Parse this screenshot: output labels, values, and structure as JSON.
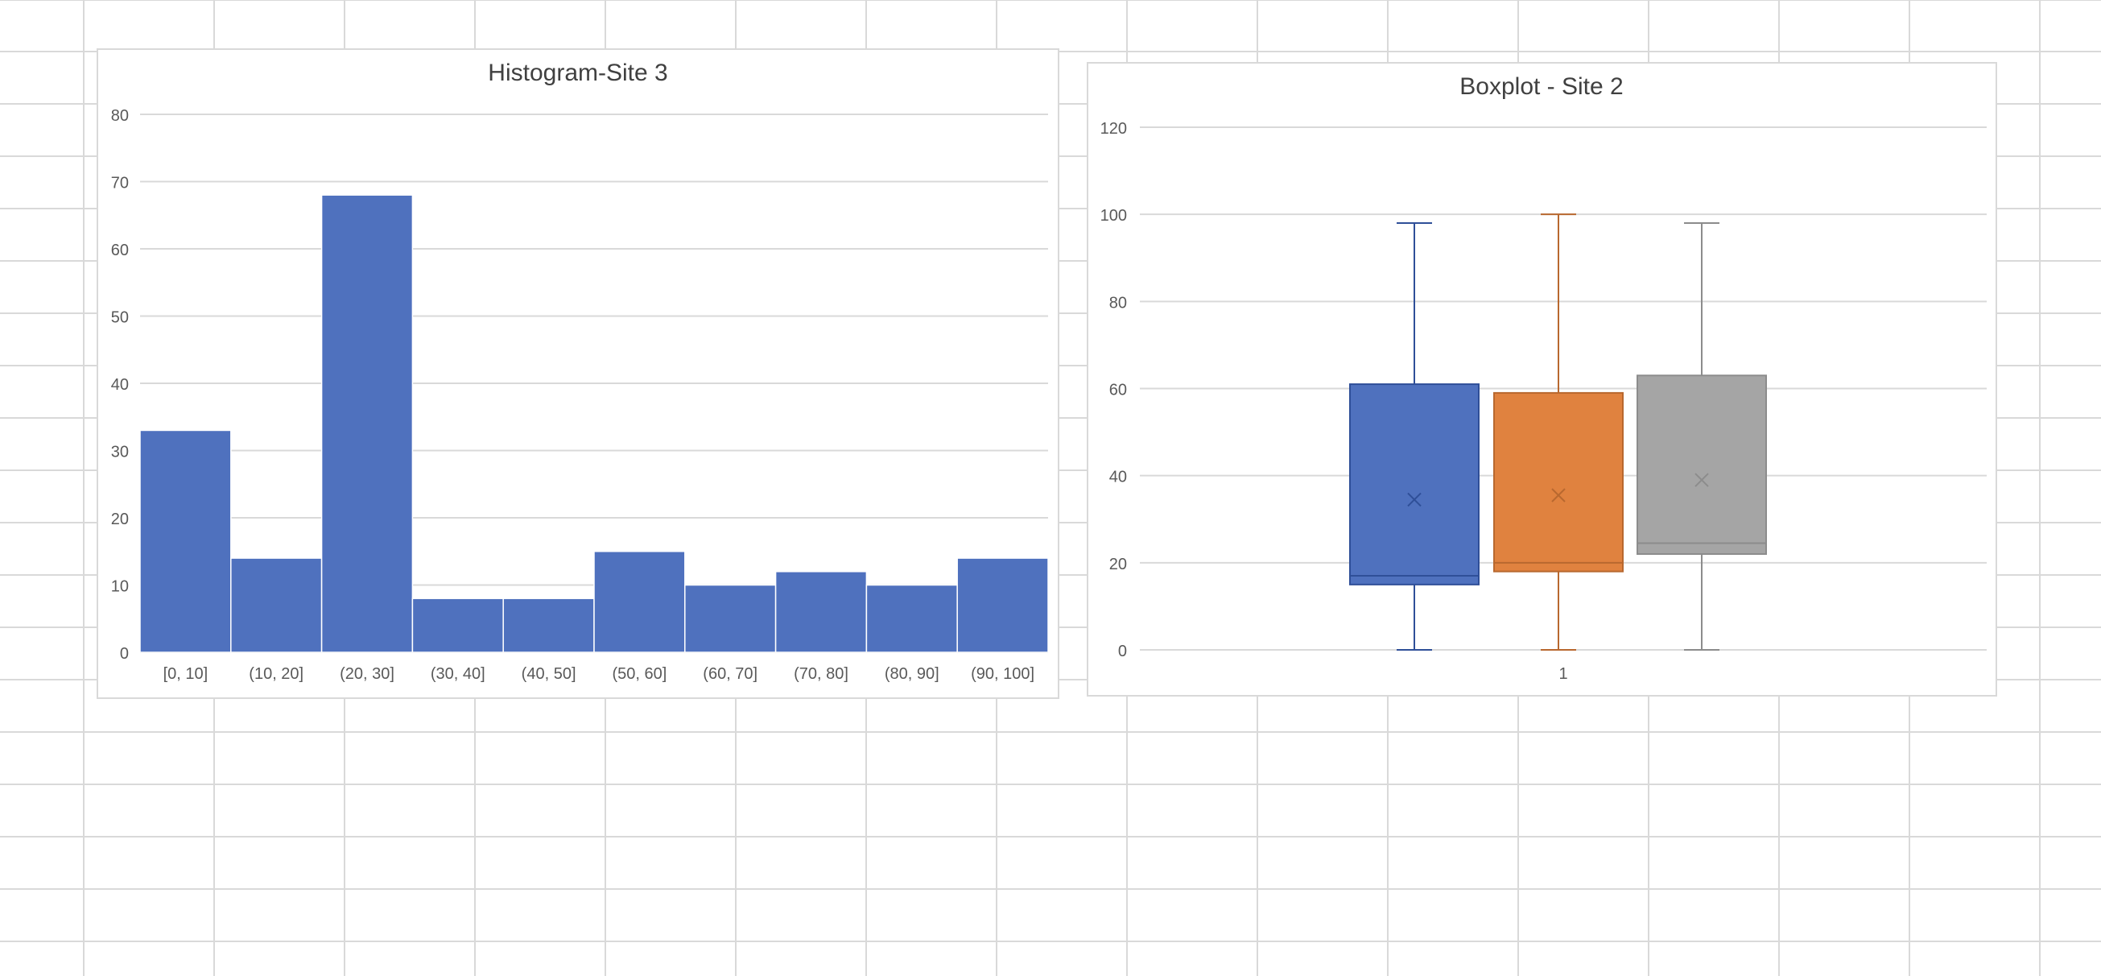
{
  "colors": {
    "sheet_gridline": "#d9d9d9",
    "chart_gridline": "#d9d9d9",
    "axis_text": "#595959",
    "title_text": "#404040",
    "hist_bar": "#4f71be",
    "box_series": [
      "#4f71be",
      "#e0823f",
      "#a5a5a5"
    ],
    "box_border": [
      "#2f4f98",
      "#b8682f",
      "#8c8c8c"
    ]
  },
  "chart_data": [
    {
      "type": "bar",
      "title": "Histogram-Site 3",
      "categories": [
        "[0, 10]",
        "(10, 20]",
        "(20, 30]",
        "(30, 40]",
        "(40, 50]",
        "(50, 60]",
        "(60, 70]",
        "(70, 80]",
        "(80, 90]",
        "(90, 100]"
      ],
      "values": [
        33,
        14,
        68,
        8,
        8,
        15,
        10,
        12,
        10,
        14
      ],
      "ylim": [
        0,
        80
      ],
      "yticks": [
        0,
        10,
        20,
        30,
        40,
        50,
        60,
        70,
        80
      ],
      "grid": true
    },
    {
      "type": "boxplot",
      "title": "Boxplot - Site 2",
      "categories": [
        "1"
      ],
      "ylim": [
        0,
        120
      ],
      "yticks": [
        0,
        20,
        40,
        60,
        80,
        100,
        120
      ],
      "grid": true,
      "boxes": [
        {
          "min": 0,
          "q1": 15,
          "median": 17,
          "q3": 61,
          "max": 98,
          "mean": 34.5
        },
        {
          "min": 0,
          "q1": 18,
          "median": 20,
          "q3": 59,
          "max": 100,
          "mean": 35.5
        },
        {
          "min": 0,
          "q1": 22,
          "median": 24.5,
          "q3": 63,
          "max": 98,
          "mean": 39
        }
      ]
    }
  ]
}
